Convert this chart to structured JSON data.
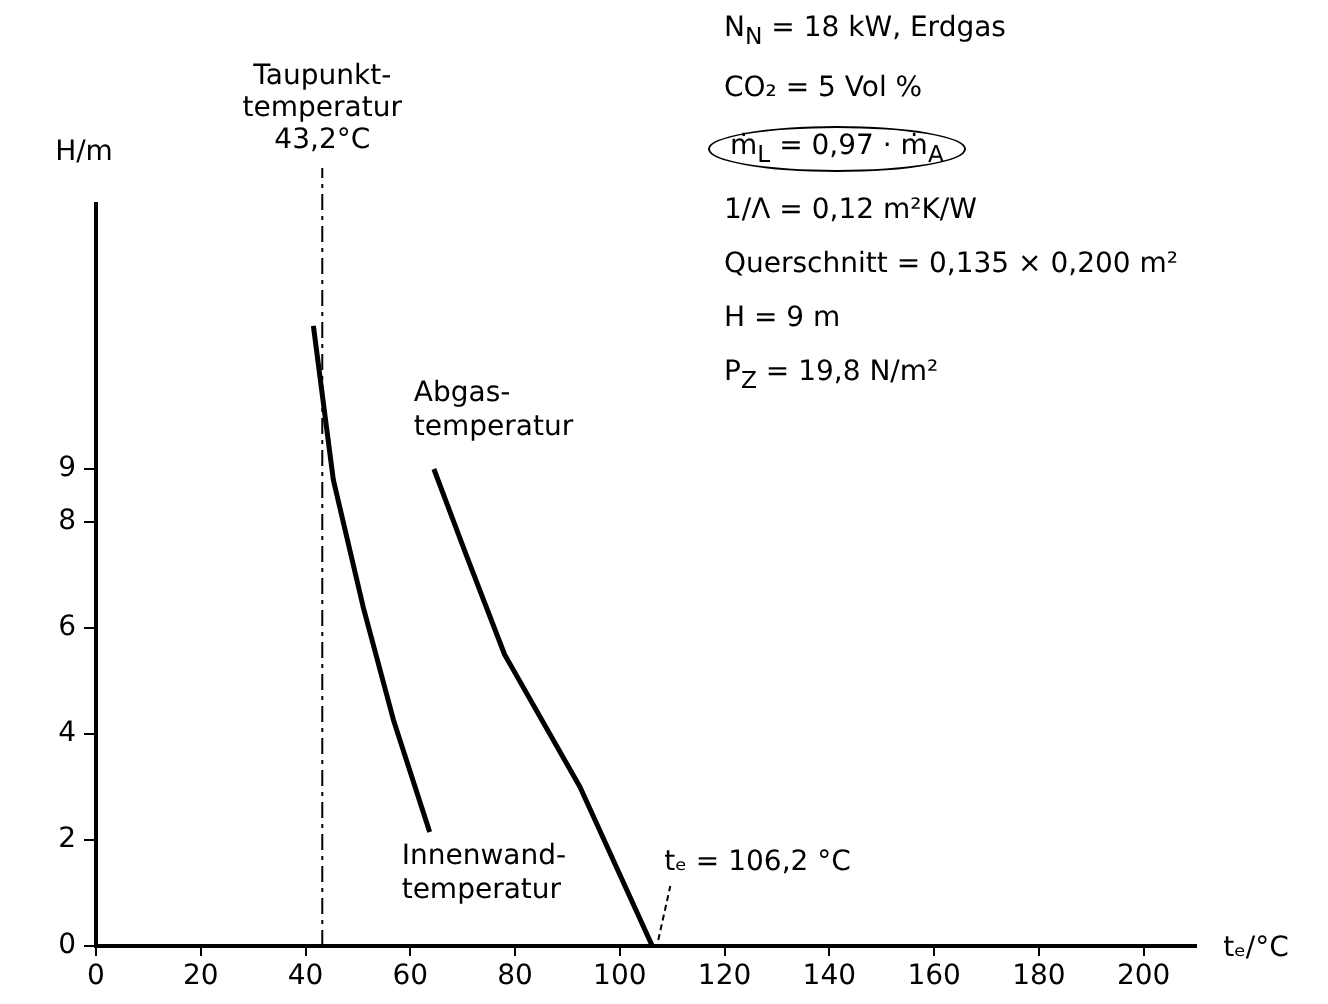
{
  "chart_data": {
    "type": "line",
    "xlabel": "tₑ/°C",
    "ylabel": "H/m",
    "xlim": [
      0,
      210
    ],
    "xticks": [
      0,
      20,
      40,
      60,
      80,
      100,
      120,
      140,
      160,
      180,
      200
    ],
    "ylim": [
      0,
      14
    ],
    "yticks": [
      0,
      2,
      4,
      6,
      8,
      9
    ],
    "grid": false,
    "legend": false,
    "marker": "none",
    "line_style": "solid",
    "series": [
      {
        "name": "Abgas-\ntemperatur",
        "color": "#000000",
        "x": [
          64.5,
          70.6,
          78,
          92.4,
          106.2
        ],
        "values": [
          9.0,
          7.4,
          5.5,
          3.0,
          0
        ]
      },
      {
        "name": "Innenwand-\ntemperatur",
        "color": "#000000",
        "x": [
          41.5,
          45.3,
          51,
          56.8,
          63.7
        ],
        "values": [
          11.7,
          8.8,
          6.4,
          4.26,
          2.15
        ]
      }
    ],
    "ref_lines": [
      {
        "axis": "x",
        "value": 43.2,
        "label": "Taupunkt-\ntemperatur\n43,2°C",
        "line_style": "dashed",
        "color": "#000000"
      }
    ],
    "annotations": [
      "N$_{N}$ = 18 kW, Erdgas",
      "CO₂ = 5 Vol %",
      "ṁ$_{L}$ = 0,97 · ṁ$_{A}$",
      "1/Λ = 0,12 m²K/W",
      "Querschnitt = 0,135 × 0,200 m²",
      "H = 9 m",
      "P$_{Z}$ = 19,8 N/m²",
      {
        "text": "tₑ = 106,2 °C",
        "x": 106.2,
        "y": 0
      }
    ]
  }
}
